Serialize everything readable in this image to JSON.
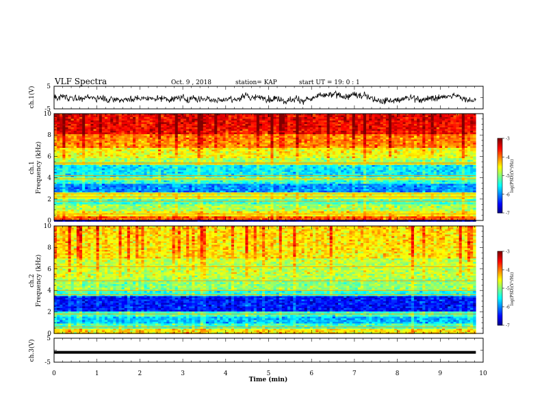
{
  "header": {
    "title": "VLF Spectra",
    "date": "Oct. 9 , 2018",
    "station": "station= KAP",
    "start": "start  UT =  19: 0  : 1"
  },
  "chart_data": [
    {
      "type": "line",
      "panel": "ch1-waveform",
      "ylabel": "ch.1(V)",
      "ylim": [
        -5,
        5
      ],
      "ytick_labels": [
        "5",
        "-5"
      ],
      "xlim": [
        0,
        9.83
      ],
      "line_color": "#000000",
      "description_level": "noisy waveform oscillating roughly between -3 V and +3 V"
    },
    {
      "type": "heatmap",
      "panel": "ch1-spectrogram",
      "ylabel_top": "ch.1",
      "ylabel": "Frequency (kHz)",
      "ylim": [
        0,
        10
      ],
      "ytick_labels": [
        "0",
        "2",
        "4",
        "6",
        "8",
        "10"
      ],
      "xlim": [
        0,
        9.83
      ],
      "colorbar": {
        "label": "log(PSD)(V²/Hz)",
        "range": [
          -7,
          -3
        ],
        "tick_labels": [
          "-3",
          "-4",
          "-5",
          "-6",
          "-7"
        ]
      },
      "profile": [
        {
          "f": [
            0.0,
            0.4
          ],
          "v": -3.9
        },
        {
          "f": [
            0.4,
            0.9
          ],
          "v": -4.5
        },
        {
          "f": [
            0.9,
            1.5
          ],
          "v": -4.9
        },
        {
          "f": [
            1.5,
            2.0
          ],
          "v": -5.3
        },
        {
          "f": [
            2.0,
            2.6
          ],
          "v": -4.7
        },
        {
          "f": [
            2.6,
            3.4
          ],
          "v": -6.0
        },
        {
          "f": [
            3.4,
            3.7
          ],
          "v": -5.4
        },
        {
          "f": [
            3.7,
            4.1
          ],
          "v": -5.0
        },
        {
          "f": [
            4.1,
            5.2
          ],
          "v": -5.6
        },
        {
          "f": [
            5.2,
            5.8
          ],
          "v": -4.9
        },
        {
          "f": [
            5.8,
            6.8
          ],
          "v": -4.6
        },
        {
          "f": [
            6.8,
            8.0
          ],
          "v": -4.1
        },
        {
          "f": [
            8.0,
            10.0
          ],
          "v": -3.6
        }
      ],
      "lines_khz": [
        0.6,
        1.8,
        2.2,
        2.5,
        3.9,
        4.2,
        5.3,
        5.4
      ]
    },
    {
      "type": "heatmap",
      "panel": "ch2-spectrogram",
      "ylabel_top": "ch.2",
      "ylabel": "Frequency (kHz)",
      "ylim": [
        0,
        10
      ],
      "ytick_labels": [
        "0",
        "2",
        "4",
        "6",
        "8",
        "10"
      ],
      "xlim": [
        0,
        9.83
      ],
      "colorbar": {
        "label": "log(PSD)(V²/Hz)",
        "range": [
          -7,
          -3
        ],
        "tick_labels": [
          "-3",
          "-4",
          "-5",
          "-6",
          "-7"
        ]
      },
      "profile": [
        {
          "f": [
            0.0,
            0.4
          ],
          "v": -4.5
        },
        {
          "f": [
            0.4,
            1.0
          ],
          "v": -5.3
        },
        {
          "f": [
            1.0,
            1.6
          ],
          "v": -5.8
        },
        {
          "f": [
            1.6,
            2.0
          ],
          "v": -5.3
        },
        {
          "f": [
            2.0,
            3.4
          ],
          "v": -6.5
        },
        {
          "f": [
            3.4,
            4.0
          ],
          "v": -5.4
        },
        {
          "f": [
            4.0,
            5.0
          ],
          "v": -5.0
        },
        {
          "f": [
            5.0,
            7.0
          ],
          "v": -4.8
        },
        {
          "f": [
            7.0,
            10.0
          ],
          "v": -4.5
        }
      ],
      "lines_khz": [
        0.6,
        1.8,
        3.6,
        4.0,
        4.9,
        6.2
      ]
    },
    {
      "type": "line",
      "panel": "ch3-waveform",
      "ylabel": "ch.3(V)",
      "ylim": [
        -5,
        5
      ],
      "ytick_labels": [
        "5",
        "-5"
      ],
      "xlim": [
        0,
        9.83
      ],
      "constant_value": -0.9,
      "xlabel": "Time (min)",
      "xtick_labels": [
        "0",
        "1",
        "2",
        "3",
        "4",
        "5",
        "6",
        "7",
        "8",
        "9",
        "10"
      ],
      "xlim_axis": [
        0,
        10
      ]
    }
  ]
}
